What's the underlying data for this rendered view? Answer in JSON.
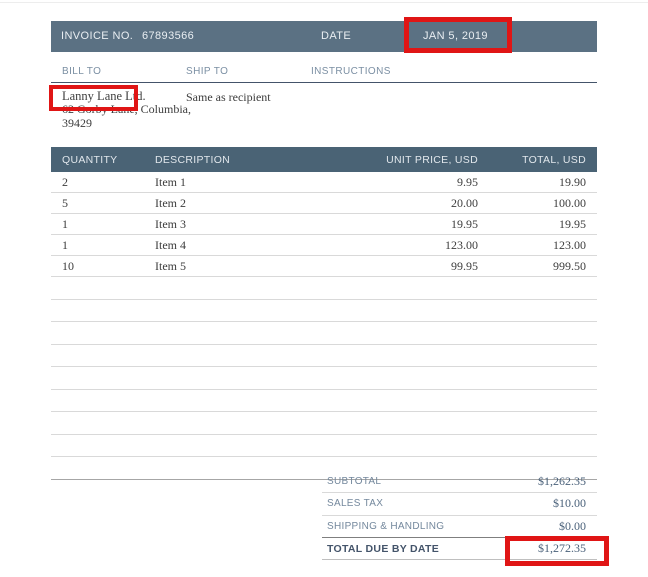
{
  "colors": {
    "topbar_bg": "#5b7183",
    "table_header_bg": "#4a6375",
    "section_rule": "#44546a",
    "label_blue": "#7b8fa3",
    "body_text": "#3d3d3d",
    "totals_value_blue": "#4a617a",
    "annotation_red": "#e01515"
  },
  "invoice_bar": {
    "invoice_no_label": "INVOICE NO.",
    "invoice_no_value": "67893566",
    "date_label": "DATE",
    "date_value": "JAN 5, 2019"
  },
  "parties": {
    "bill_to_label": "BILL TO",
    "ship_to_label": "SHIP TO",
    "instructions_label": "INSTRUCTIONS",
    "bill_to_name": "Lanny Lane Ltd.",
    "bill_to_address_line1": "62 Gorby Lane, Columbia,",
    "bill_to_address_line2": "39429",
    "ship_to_value": "Same as recipient"
  },
  "items_table": {
    "headers": {
      "quantity": "QUANTITY",
      "description": "DESCRIPTION",
      "unit_price": "UNIT PRICE, USD",
      "total": "TOTAL, USD"
    },
    "rows": [
      {
        "quantity": "2",
        "description": "Item 1",
        "unit_price": "9.95",
        "total": "19.90"
      },
      {
        "quantity": "5",
        "description": "Item 2",
        "unit_price": "20.00",
        "total": "100.00"
      },
      {
        "quantity": "1",
        "description": "Item 3",
        "unit_price": "19.95",
        "total": "19.95"
      },
      {
        "quantity": "1",
        "description": "Item 4",
        "unit_price": "123.00",
        "total": "123.00"
      },
      {
        "quantity": "10",
        "description": "Item 5",
        "unit_price": "99.95",
        "total": "999.50"
      }
    ],
    "empty_row_count": 9
  },
  "totals": {
    "subtotal_label": "SUBTOTAL",
    "subtotal_value": "$1,262.35",
    "sales_tax_label": "SALES TAX",
    "sales_tax_value": "$10.00",
    "shipping_label": "SHIPPING & HANDLING",
    "shipping_value": "$0.00",
    "total_due_label": "TOTAL DUE BY DATE",
    "total_due_value": "$1,272.35"
  },
  "annotations": {
    "highlight_color": "#e01515",
    "highlighted_fields": [
      "date_value",
      "bill_to_name",
      "total_due_value"
    ]
  }
}
